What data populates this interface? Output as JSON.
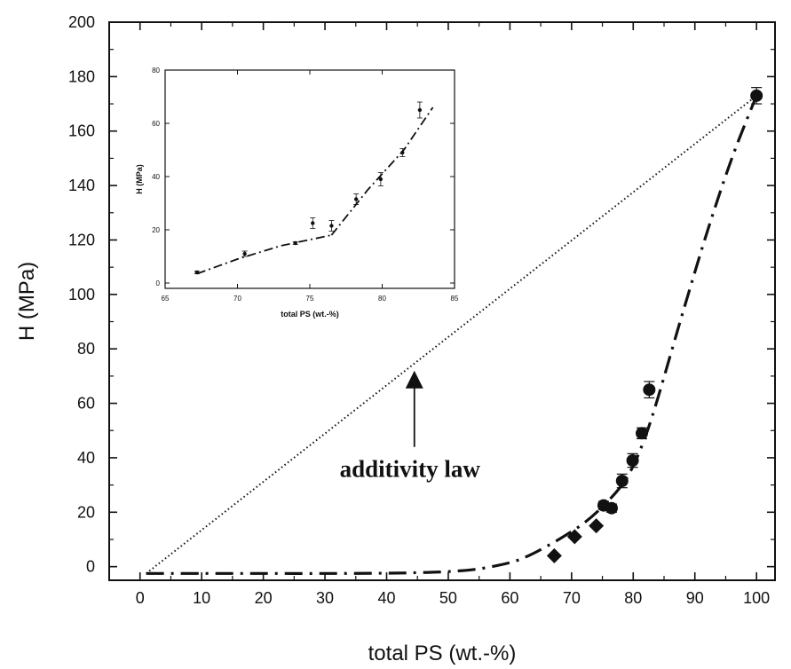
{
  "chart_data": [
    {
      "type": "scatter",
      "xlabel": "total PS (wt.-%)",
      "ylabel": "H (MPa)",
      "xlim": [
        -5,
        103
      ],
      "ylim": [
        -5,
        200
      ],
      "xticks": [
        0,
        10,
        20,
        30,
        40,
        50,
        60,
        70,
        80,
        90,
        100
      ],
      "yticks": [
        0,
        20,
        40,
        60,
        80,
        100,
        120,
        140,
        160,
        180,
        200
      ],
      "grid": false,
      "series": [
        {
          "marker": "diamond",
          "x": [
            67.2,
            70.5,
            74.0
          ],
          "y": [
            4,
            11,
            15
          ],
          "err": [
            0,
            0,
            0
          ]
        },
        {
          "marker": "circle",
          "x": [
            75.2,
            76.5,
            78.2,
            79.9,
            81.4,
            82.6,
            100
          ],
          "y": [
            22.5,
            21.5,
            31.5,
            39,
            49,
            65,
            173
          ],
          "err": [
            1.5,
            1.5,
            2.5,
            2.5,
            2,
            3,
            3
          ]
        },
        {
          "style": "dash-dot fit",
          "x": [
            1,
            10,
            20,
            30,
            40,
            45,
            50,
            55,
            60,
            63,
            66,
            69,
            72,
            75,
            78,
            80,
            82,
            84,
            88,
            92,
            96,
            100
          ],
          "y": [
            -2.5,
            -2.5,
            -2.5,
            -2.5,
            -2.4,
            -2.2,
            -1.8,
            -0.8,
            1.5,
            4,
            7.5,
            11.5,
            16,
            22,
            29.5,
            37,
            48,
            62,
            93,
            123,
            150,
            173
          ]
        },
        {
          "style": "dotted additivity line",
          "x": [
            1,
            100
          ],
          "y": [
            -2.5,
            173
          ]
        }
      ],
      "annotations": [
        {
          "text": "additivity law",
          "arrow_to": {
            "x": 44.5,
            "y": 72
          }
        }
      ]
    },
    {
      "type": "scatter",
      "xlabel": "total PS (wt.-%)",
      "ylabel": "H (MPa)",
      "xlim": [
        65,
        85
      ],
      "ylim": [
        -2,
        80
      ],
      "xticks": [
        65,
        70,
        75,
        80,
        85
      ],
      "yticks": [
        0,
        20,
        40,
        60,
        80
      ],
      "grid": false,
      "series": [
        {
          "marker": "point",
          "x": [
            67.2,
            70.5,
            74.0,
            75.2,
            76.5,
            78.2,
            79.9,
            81.4,
            82.6
          ],
          "y": [
            4,
            11,
            15,
            22.5,
            21.5,
            31.5,
            39,
            49,
            65
          ],
          "err": [
            0.5,
            1,
            0.5,
            2,
            2,
            2,
            2.5,
            1.5,
            3
          ]
        },
        {
          "style": "dash-dot fit",
          "x": [
            67.2,
            70,
            73,
            76.5
          ],
          "y": [
            3.5,
            9,
            14,
            18
          ]
        },
        {
          "style": "dash-dot fit",
          "x": [
            76.5,
            79,
            81.5,
            83.5
          ],
          "y": [
            18,
            35,
            50,
            66
          ]
        }
      ]
    }
  ]
}
